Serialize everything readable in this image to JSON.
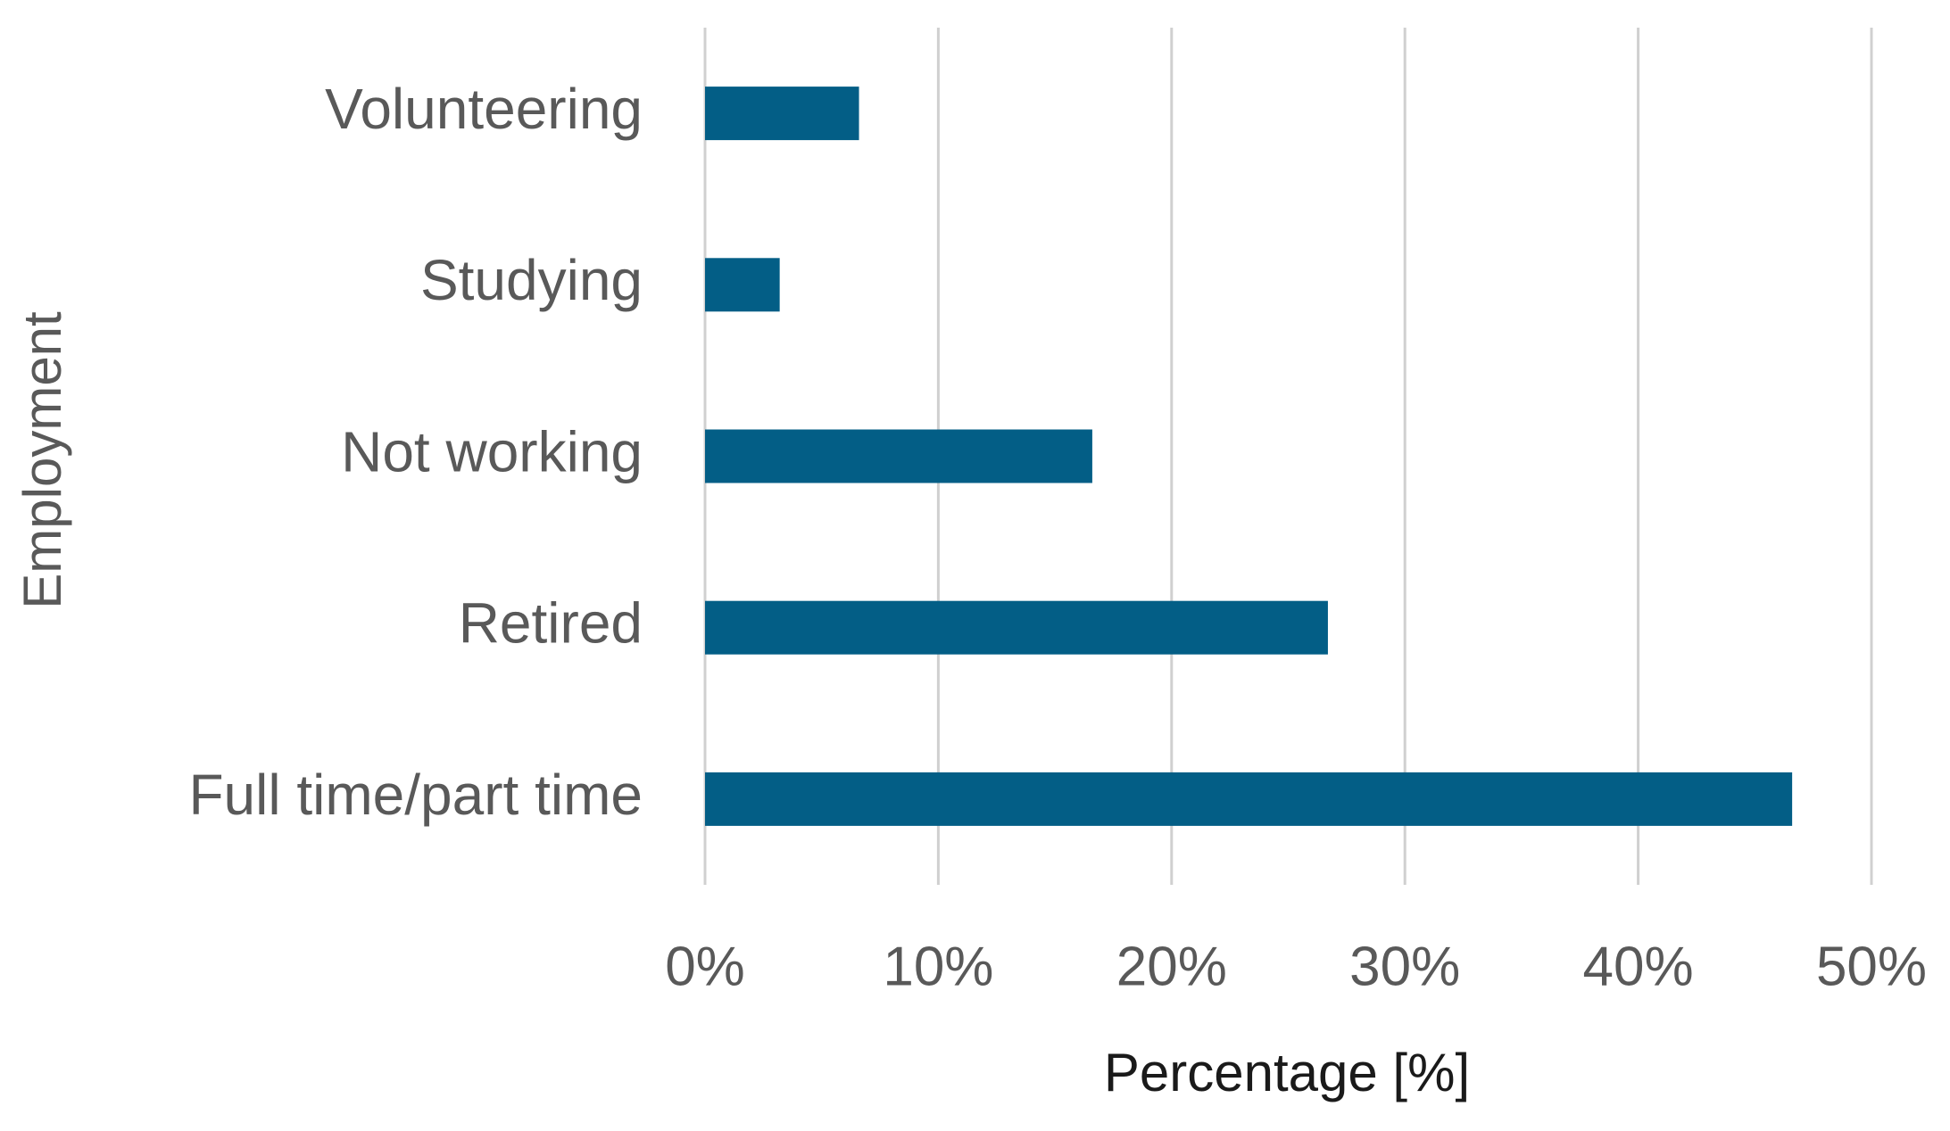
{
  "chart_data": {
    "type": "bar",
    "orientation": "horizontal",
    "x_label": "Percentage [%]",
    "y_label": "Employment",
    "categories": [
      "Volunteering",
      "Studying",
      "Not working",
      "Retired",
      "Full time/part time"
    ],
    "values": [
      6.6,
      3.2,
      16.6,
      26.7,
      46.6
    ],
    "color": "#035e86",
    "xlim": [
      0,
      50
    ],
    "xticks": [
      {
        "value": 0,
        "label": "0%"
      },
      {
        "value": 10,
        "label": "10%"
      },
      {
        "value": 20,
        "label": "20%"
      },
      {
        "value": 30,
        "label": "30%"
      },
      {
        "value": 40,
        "label": "40%"
      },
      {
        "value": 50,
        "label": "50%"
      }
    ],
    "grid": true
  }
}
